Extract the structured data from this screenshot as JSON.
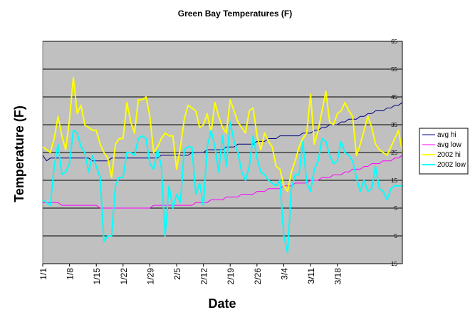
{
  "chart_data": {
    "type": "line",
    "title": "Green Bay Temperatures (F)",
    "xlabel": "Date",
    "ylabel": "Temperature (F)",
    "x_tick_labels": [
      "1/1",
      "1/8",
      "1/15",
      "1/22",
      "1/29",
      "2/5",
      "2/12",
      "2/19",
      "2/26",
      "3/4",
      "3/11",
      "3/18"
    ],
    "y_tick_labels": [
      "65",
      "55",
      "45",
      "35",
      "25",
      "15",
      "5",
      "5",
      "15"
    ],
    "y_tick_values": [
      65,
      55,
      45,
      35,
      25,
      15,
      5,
      -5,
      -15
    ],
    "ylim": [
      -15,
      65
    ],
    "x_start": "1/1",
    "grid": true,
    "legend_position": "right",
    "series": [
      {
        "name": "avg hi",
        "color": "#000080",
        "values": [
          24,
          22,
          23,
          23,
          23,
          23,
          23,
          23,
          23,
          23,
          23,
          23,
          23,
          22,
          22,
          22,
          22,
          22,
          23,
          23,
          23,
          23,
          23,
          23,
          23,
          23,
          23,
          23,
          23,
          23,
          23,
          24,
          24,
          24,
          24,
          24,
          24,
          24,
          24,
          25,
          25,
          25,
          25,
          26,
          26,
          26,
          26,
          26,
          27,
          27,
          27,
          28,
          28,
          28,
          28,
          28,
          29,
          29,
          29,
          30,
          30,
          30,
          31,
          31,
          31,
          31,
          31,
          31,
          32,
          32,
          32,
          33,
          33,
          34,
          34,
          35,
          35,
          35,
          36,
          36,
          37,
          37,
          37,
          38,
          38,
          39,
          39,
          40,
          40,
          40,
          41,
          41,
          42,
          42,
          43
        ]
      },
      {
        "name": "avg low",
        "color": "#ff00ff",
        "values": [
          7,
          7,
          7,
          7,
          7,
          6,
          6,
          6,
          6,
          6,
          6,
          6,
          6,
          6,
          6,
          5,
          5,
          5,
          5,
          5,
          5,
          5,
          5,
          5,
          5,
          5,
          5,
          5,
          5,
          6,
          6,
          6,
          6,
          6,
          6,
          6,
          6,
          6,
          6,
          6,
          7,
          7,
          7,
          7,
          8,
          8,
          8,
          8,
          9,
          9,
          9,
          9,
          10,
          10,
          10,
          10,
          11,
          11,
          11,
          12,
          12,
          12,
          12,
          13,
          13,
          13,
          14,
          14,
          14,
          14,
          15,
          15,
          15,
          16,
          16,
          16,
          17,
          17,
          17,
          18,
          18,
          19,
          19,
          19,
          20,
          20,
          21,
          21,
          21,
          22,
          22,
          22,
          23,
          23,
          24
        ]
      },
      {
        "name": "2002 hi",
        "color": "#ffff00",
        "values": [
          27,
          26,
          25,
          30,
          38,
          31,
          26,
          37,
          52,
          39,
          42,
          35,
          34,
          33,
          33,
          28,
          25,
          23,
          16,
          28,
          30,
          30,
          43,
          36,
          32,
          44,
          44,
          45,
          38,
          25,
          27,
          30,
          32,
          31,
          31,
          19,
          27,
          37,
          42,
          41,
          40,
          34,
          35,
          39,
          32,
          43,
          38,
          34,
          32,
          44,
          40,
          36,
          34,
          32,
          40,
          41,
          31,
          26,
          32,
          29,
          27,
          20,
          19,
          13,
          11,
          18,
          22,
          27,
          30,
          32,
          46,
          28,
          33,
          40,
          47,
          36,
          35,
          39,
          40,
          43,
          40,
          38,
          24,
          28,
          33,
          38,
          34,
          28,
          26,
          25,
          24,
          27,
          30,
          33,
          25
        ]
      },
      {
        "name": "2002 low",
        "color": "#00ffff",
        "values": [
          8,
          7,
          6,
          20,
          28,
          17,
          18,
          21,
          33,
          32,
          27,
          25,
          18,
          24,
          20,
          16,
          -7,
          -5,
          -5,
          13,
          16,
          16,
          25,
          25,
          24,
          30,
          31,
          30,
          21,
          19,
          26,
          20,
          -5,
          13,
          5,
          10,
          7,
          26,
          27,
          27,
          10,
          14,
          6,
          27,
          33,
          27,
          18,
          31,
          20,
          36,
          29,
          25,
          18,
          15,
          20,
          31,
          23,
          18,
          17,
          15,
          14,
          13,
          15,
          -5,
          -11,
          12,
          17,
          17,
          29,
          14,
          11,
          19,
          22,
          30,
          29,
          24,
          21,
          22,
          29,
          25,
          24,
          22,
          16,
          11,
          15,
          11,
          12,
          20,
          12,
          11,
          8,
          12,
          13,
          13,
          13
        ]
      }
    ]
  }
}
